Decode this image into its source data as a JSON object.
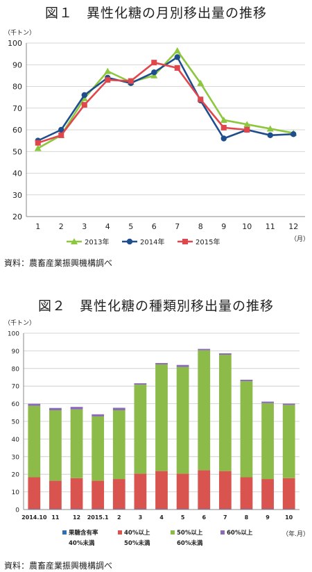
{
  "chart1": {
    "title": "図１　異性化糖の月別移出量の推移",
    "unit_y": "（千トン）",
    "unit_x": "（月）",
    "source": "資料：農畜産業振興機構調べ",
    "colors": {
      "s2013": "#8dc63f",
      "s2014": "#1f4e8c",
      "s2015": "#e0474c"
    }
  },
  "chart2": {
    "title": "図２　異性化糖の種類別移出量の推移",
    "unit_y": "（千トン）",
    "unit_x": "（年.月）",
    "source": "資料：農畜産業振興機構調べ",
    "legend": [
      {
        "l1": "果糖含有率",
        "l2": "40%未満"
      },
      {
        "l1": "40%以上",
        "l2": "50%未満"
      },
      {
        "l1": "50%以上",
        "l2": "60%未満"
      },
      {
        "l1": "60%以上",
        "l2": ""
      }
    ],
    "colors": [
      "#2f6fb0",
      "#d9534f",
      "#8dbb4a",
      "#8b6bb5"
    ]
  },
  "chart_data": [
    {
      "type": "line",
      "title": "図１　異性化糖の月別移出量の推移",
      "x": [
        "1",
        "2",
        "3",
        "4",
        "5",
        "6",
        "7",
        "8",
        "9",
        "10",
        "11",
        "12"
      ],
      "ylim": [
        20,
        100
      ],
      "yticks": [
        20,
        30,
        40,
        50,
        60,
        70,
        80,
        90,
        100
      ],
      "grid": true,
      "legend": "bottom",
      "series": [
        {
          "name": "2013年",
          "marker": "triangle",
          "values": [
            51.5,
            57.5,
            74.5,
            87,
            82,
            85,
            96.5,
            81.5,
            64.5,
            62.5,
            60.5,
            58.5
          ]
        },
        {
          "name": "2014年",
          "marker": "circle",
          "values": [
            55,
            60,
            76,
            84,
            81.5,
            86.5,
            93.5,
            73.5,
            56,
            60,
            57.5,
            58
          ]
        },
        {
          "name": "2015年",
          "marker": "square",
          "values": [
            54,
            57.5,
            71.5,
            83,
            82.5,
            91,
            88.5,
            74,
            61,
            60,
            null,
            null
          ]
        }
      ]
    },
    {
      "type": "bar",
      "stacked": true,
      "title": "図２　異性化糖の種類別移出量の推移",
      "categories": [
        "2014.10",
        "11",
        "12",
        "2015.1",
        "2",
        "3",
        "4",
        "5",
        "6",
        "7",
        "8",
        "9",
        "10"
      ],
      "ylim": [
        0,
        100
      ],
      "yticks": [
        0,
        10,
        20,
        30,
        40,
        50,
        60,
        70,
        80,
        90,
        100
      ],
      "grid": true,
      "legend": "bottom",
      "series": [
        {
          "name": "果糖含有率 40%未満",
          "values": [
            0.3,
            0.3,
            0.3,
            0.3,
            0.3,
            0.3,
            0.3,
            0.3,
            0.3,
            0.3,
            0.3,
            0.3,
            0.3
          ]
        },
        {
          "name": "40%以上 50%未満",
          "values": [
            18,
            16,
            17.5,
            16,
            17,
            20,
            21.5,
            20,
            22,
            21.5,
            18,
            17,
            17.5
          ]
        },
        {
          "name": "50%以上 60%未満",
          "values": [
            40.5,
            40,
            39,
            36.5,
            39,
            50.5,
            60.5,
            60.5,
            68,
            66,
            54.5,
            43,
            41.5
          ]
        },
        {
          "name": "60%以上",
          "values": [
            1.2,
            1.3,
            1.4,
            1.2,
            1.4,
            0.8,
            0.8,
            1.2,
            0.8,
            0.8,
            0.8,
            0.9,
            0.8
          ]
        }
      ]
    }
  ]
}
